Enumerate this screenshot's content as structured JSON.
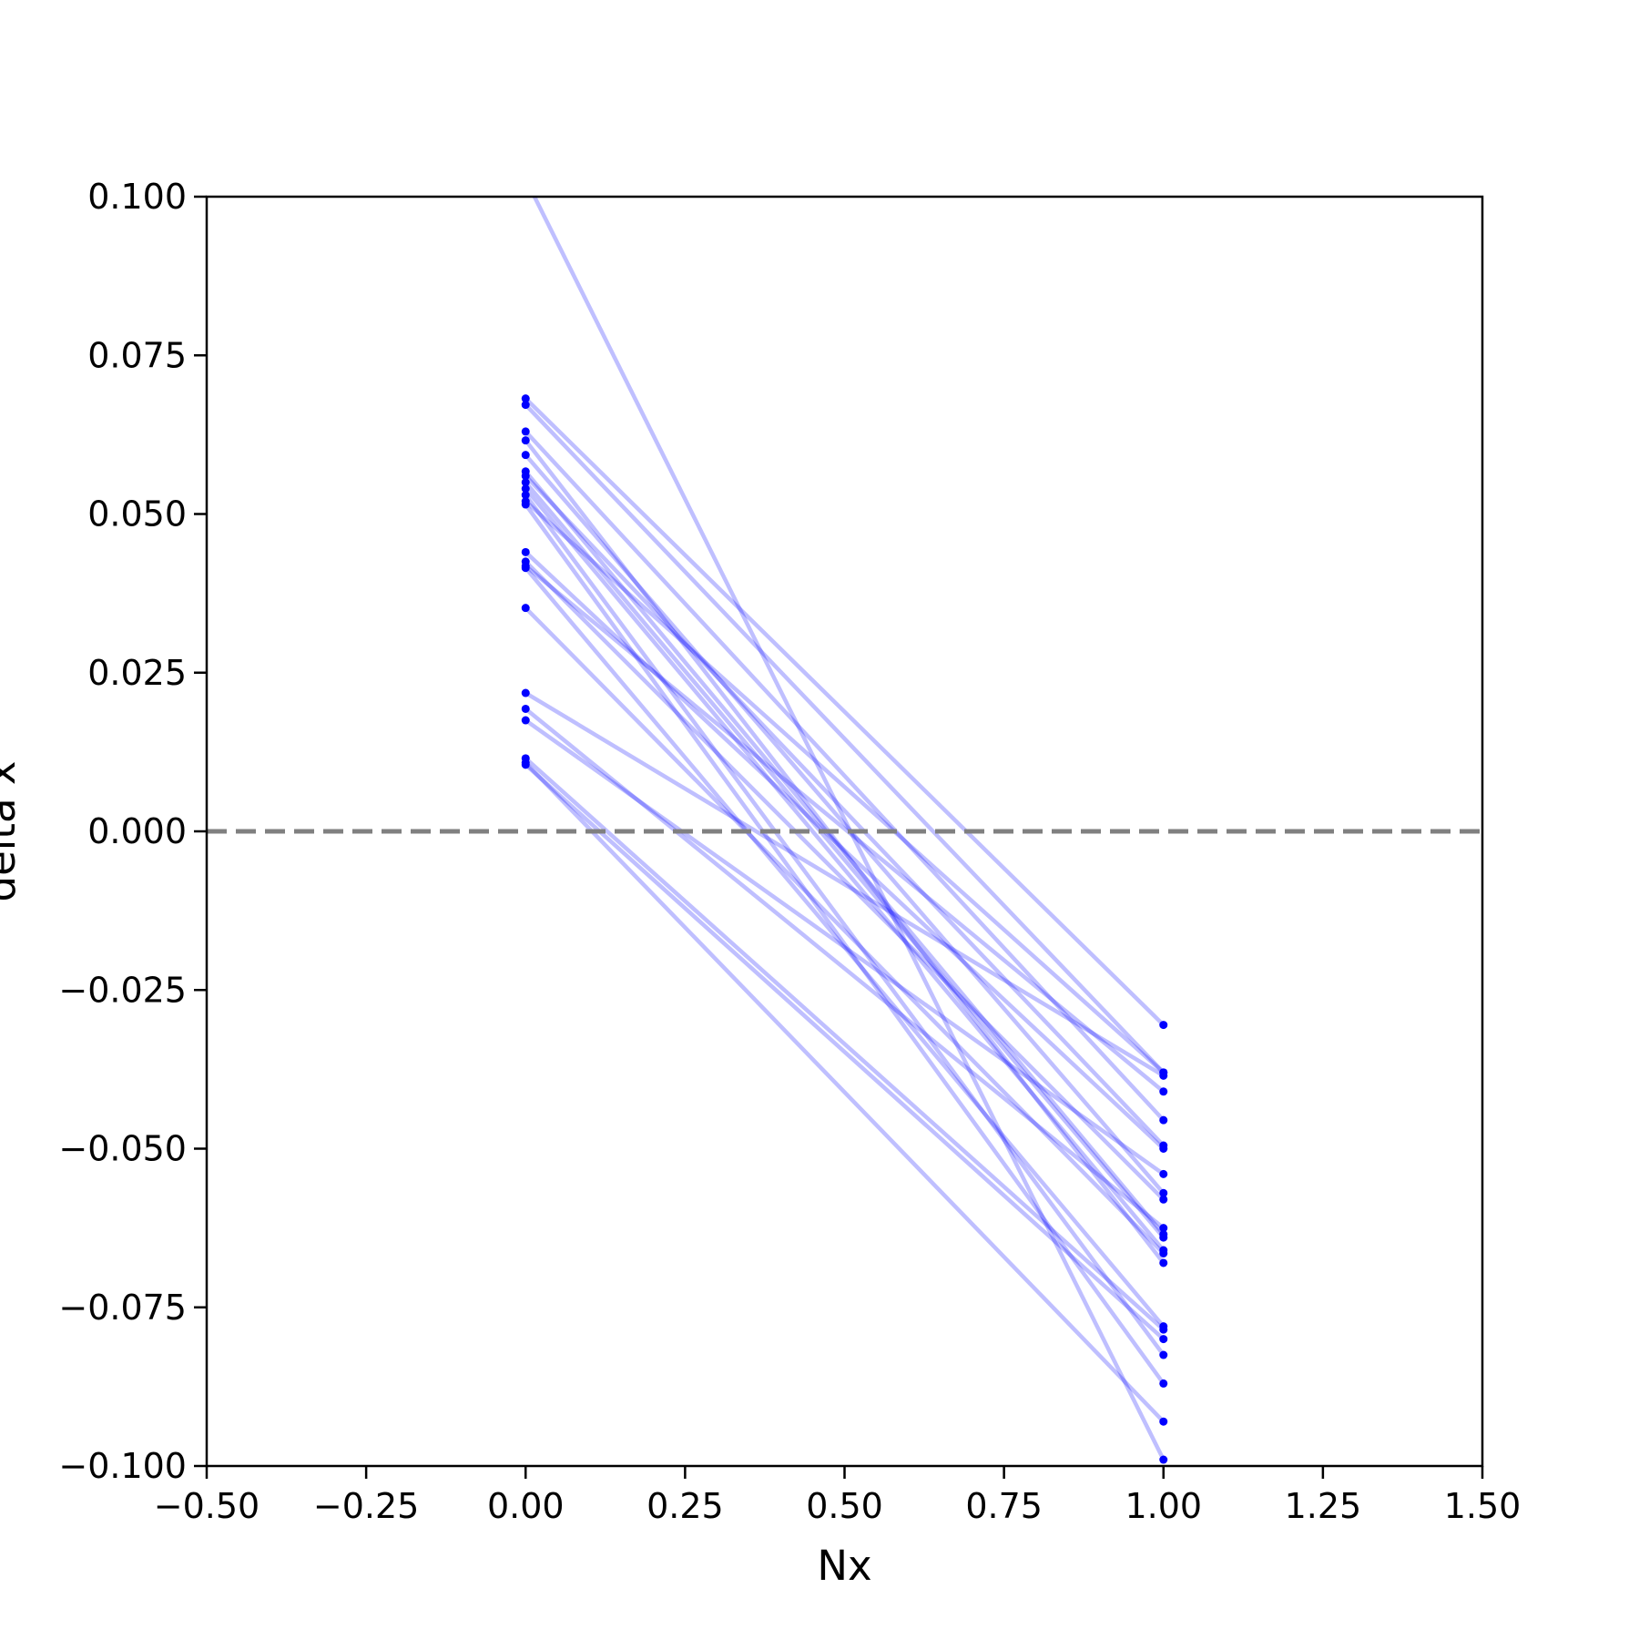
{
  "chart_data": {
    "type": "line",
    "title": "",
    "xlabel": "Nx",
    "ylabel": "delta x",
    "xlim": [
      -0.5,
      1.5
    ],
    "ylim": [
      -0.1,
      0.1
    ],
    "xticks": [
      -0.5,
      -0.25,
      0.0,
      0.25,
      0.5,
      0.75,
      1.0,
      1.25,
      1.5
    ],
    "xtick_labels": [
      "−0.50",
      "−0.25",
      "0.00",
      "0.25",
      "0.50",
      "0.75",
      "1.00",
      "1.25",
      "1.50"
    ],
    "yticks": [
      0.1,
      0.075,
      0.05,
      0.025,
      0.0,
      -0.025,
      -0.05,
      -0.075,
      -0.1
    ],
    "ytick_labels": [
      "0.100",
      "0.075",
      "0.050",
      "0.025",
      "0.000",
      "−0.025",
      "−0.050",
      "−0.075",
      "−0.100"
    ],
    "grid": false,
    "reference_line": {
      "y": 0.0,
      "style": "dashed",
      "color": "#808080"
    },
    "line_color": "#0000ff",
    "x": [
      0,
      1
    ],
    "series": [
      {
        "values": [
          0.1028,
          -0.099
        ]
      },
      {
        "values": [
          0.0682,
          -0.0305
        ]
      },
      {
        "values": [
          0.0672,
          -0.038
        ]
      },
      {
        "values": [
          0.063,
          -0.0455
        ]
      },
      {
        "values": [
          0.0616,
          -0.068
        ]
      },
      {
        "values": [
          0.0593,
          -0.057
        ]
      },
      {
        "values": [
          0.0567,
          -0.0635
        ]
      },
      {
        "values": [
          0.056,
          -0.0495
        ]
      },
      {
        "values": [
          0.055,
          -0.064
        ]
      },
      {
        "values": [
          0.054,
          -0.066
        ]
      },
      {
        "values": [
          0.053,
          -0.0825
        ]
      },
      {
        "values": [
          0.052,
          -0.038
        ]
      },
      {
        "values": [
          0.0515,
          -0.087
        ]
      },
      {
        "values": [
          0.044,
          -0.05
        ]
      },
      {
        "values": [
          0.0425,
          -0.058
        ]
      },
      {
        "values": [
          0.0418,
          -0.041
        ]
      },
      {
        "values": [
          0.0415,
          -0.078
        ]
      },
      {
        "values": [
          0.0352,
          -0.0665
        ]
      },
      {
        "values": [
          0.0218,
          -0.0385
        ]
      },
      {
        "values": [
          0.0193,
          -0.0625
        ]
      },
      {
        "values": [
          0.0175,
          -0.054
        ]
      },
      {
        "values": [
          0.0115,
          -0.0785
        ]
      },
      {
        "values": [
          0.0108,
          -0.093
        ]
      },
      {
        "values": [
          0.0105,
          -0.08
        ]
      }
    ]
  }
}
